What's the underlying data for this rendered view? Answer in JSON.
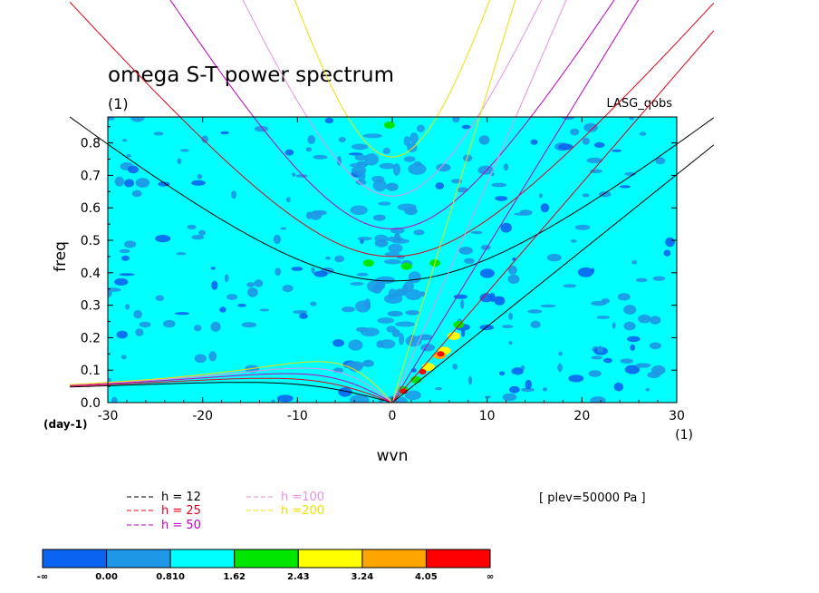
{
  "chart_data": {
    "type": "contour",
    "title": "omega S-T power spectrum",
    "subtitle": "(1)",
    "dataset_label": "LASG_qobs",
    "xlabel": "wvn",
    "ylabel": "freq",
    "x_unit_label": "(1)",
    "y_unit_label": "(day-1)",
    "xlim": [
      -30,
      30
    ],
    "ylim": [
      0,
      0.88
    ],
    "x_ticks": [
      -30,
      -20,
      -10,
      0,
      10,
      20,
      30
    ],
    "x_tick_labels": [
      "-30",
      "-20",
      "-10",
      "0",
      "10",
      "20",
      "30"
    ],
    "y_ticks": [
      0,
      0.1,
      0.2,
      0.3,
      0.4,
      0.5,
      0.6,
      0.7,
      0.8
    ],
    "y_tick_labels": [
      "0.0",
      "0.1",
      "0.2",
      "0.3",
      "0.4",
      "0.5",
      "0.6",
      "0.7",
      "0.8"
    ],
    "level_label": "[ plev=50000 Pa ]",
    "background_color": "#00ffff",
    "dispersion_curves": [
      {
        "label": "h = 12",
        "h": 12,
        "color": "#000000"
      },
      {
        "label": "h = 25",
        "h": 25,
        "color": "#e0001a"
      },
      {
        "label": "h = 50",
        "h": 50,
        "color": "#c000c0"
      },
      {
        "label": "h =100",
        "h": 100,
        "color": "#e890e0"
      },
      {
        "label": "h =200",
        "h": 200,
        "color": "#f0e000"
      }
    ],
    "colorbar": {
      "boundaries": [
        "-∞",
        "0.00",
        "0.810",
        "1.62",
        "2.43",
        "3.24",
        "4.05",
        "∞"
      ],
      "colors": [
        "#0a64f0",
        "#1e96e6",
        "#00ffff",
        "#00e600",
        "#ffff00",
        "#ffa500",
        "#ff0000"
      ]
    },
    "hotspots": [
      {
        "x": 0.2,
        "y": 0.0,
        "level": 1
      },
      {
        "x": -2.5,
        "y": 0.43,
        "level": 3
      },
      {
        "x": 1.5,
        "y": 0.42,
        "level": 3
      },
      {
        "x": 4.5,
        "y": 0.43,
        "level": 3
      },
      {
        "x": -0.3,
        "y": 0.855,
        "level": 3
      },
      {
        "x": 7.0,
        "y": 0.24,
        "level": 3
      },
      {
        "x": 6.5,
        "y": 0.205,
        "level": 4
      },
      {
        "x": 5.5,
        "y": 0.16,
        "level": 4
      },
      {
        "x": 3.8,
        "y": 0.11,
        "level": 4
      },
      {
        "x": 2.5,
        "y": 0.07,
        "level": 3
      },
      {
        "x": 1.1,
        "y": 0.04,
        "level": 3
      },
      {
        "x": 5.0,
        "y": 0.145,
        "level": 5
      },
      {
        "x": 3.2,
        "y": 0.095,
        "level": 6
      },
      {
        "x": 1.2,
        "y": 0.035,
        "level": 6
      },
      {
        "x": 5.1,
        "y": 0.15,
        "level": 6
      }
    ]
  }
}
